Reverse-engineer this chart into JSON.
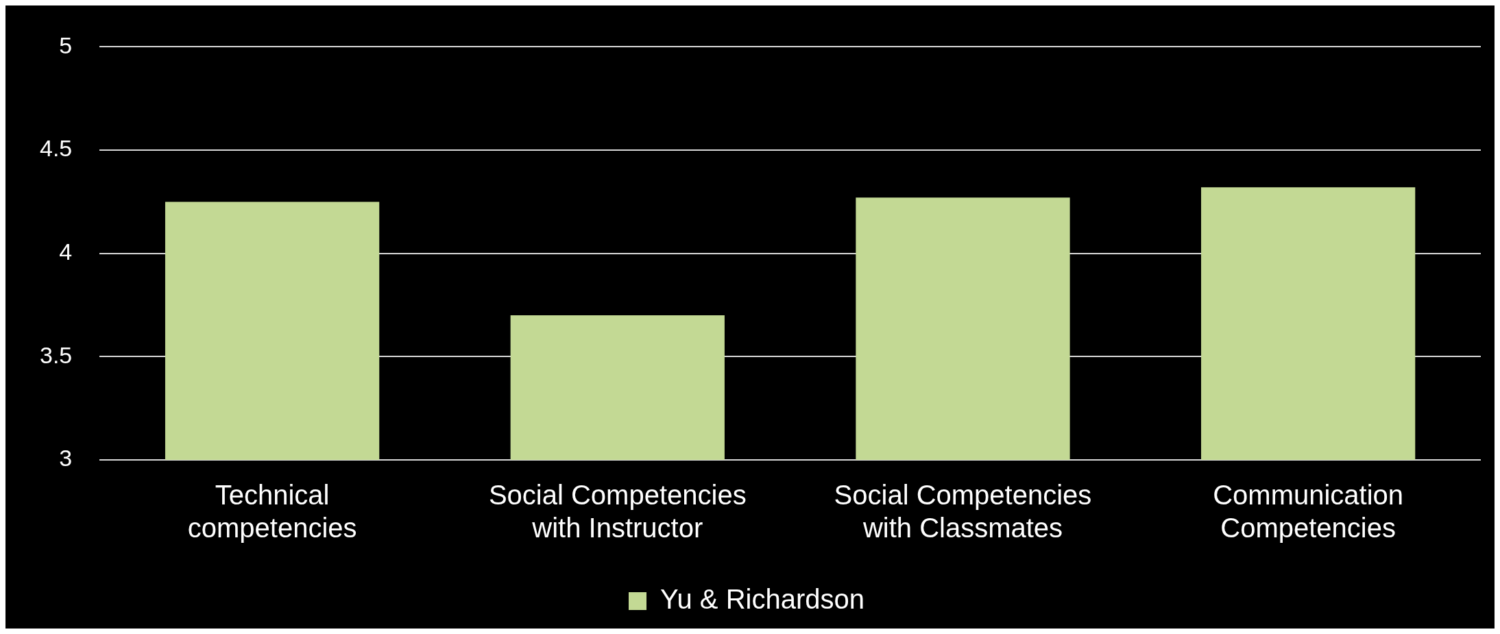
{
  "chart_data": {
    "type": "bar",
    "categories": [
      "Technical competencies",
      "Social Competencies with Instructor",
      "Social Competencies with Classmates",
      "Communication Competencies"
    ],
    "series": [
      {
        "name": "Yu & Richardson",
        "color": "#c3d994",
        "values": [
          4.25,
          3.7,
          4.27,
          4.32
        ]
      }
    ],
    "ylim": [
      3,
      5
    ],
    "yticks": [
      3,
      3.5,
      4,
      4.5,
      5
    ],
    "grid": "y",
    "legend": "bottom"
  }
}
